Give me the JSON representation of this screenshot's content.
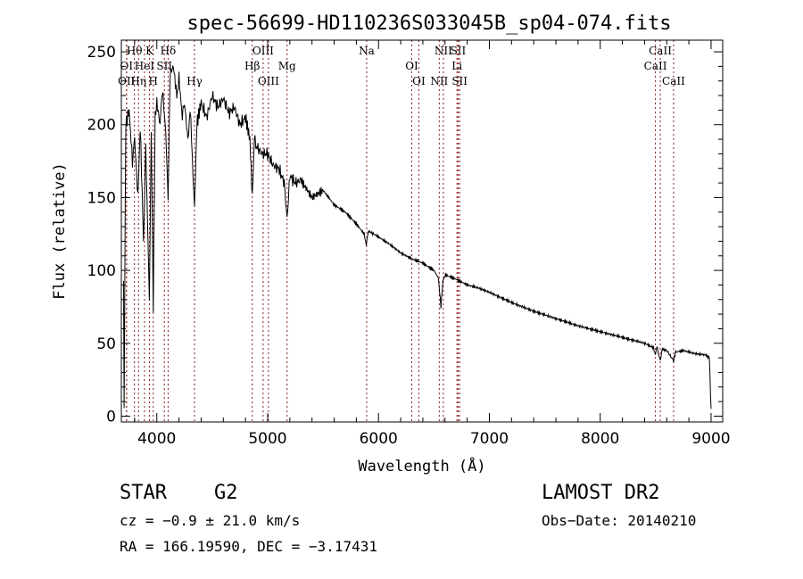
{
  "chart_data": {
    "type": "line",
    "title": "spec-56699-HD110236S033045B_sp04-074.fits",
    "xlabel": "Wavelength (Å)",
    "ylabel": "Flux (relative)",
    "xlim": [
      3680,
      9105
    ],
    "ylim": [
      -4,
      258
    ],
    "xticks": [
      4000,
      5000,
      6000,
      7000,
      8000,
      9000
    ],
    "yticks": [
      0,
      50,
      100,
      150,
      200,
      250
    ],
    "grid": false,
    "series": [
      {
        "name": "flux",
        "x": [
          3700,
          3705,
          3720,
          3750,
          3780,
          3800,
          3830,
          3850,
          3880,
          3900,
          3933,
          3950,
          3968,
          3985,
          4000,
          4030,
          4050,
          4080,
          4102,
          4120,
          4150,
          4180,
          4200,
          4230,
          4250,
          4280,
          4300,
          4320,
          4340,
          4360,
          4400,
          4450,
          4500,
          4550,
          4600,
          4650,
          4700,
          4750,
          4800,
          4840,
          4861,
          4880,
          4900,
          4950,
          5000,
          5050,
          5100,
          5150,
          5175,
          5200,
          5250,
          5300,
          5400,
          5500,
          5600,
          5700,
          5800,
          5870,
          5890,
          5910,
          6000,
          6100,
          6200,
          6300,
          6400,
          6500,
          6540,
          6563,
          6580,
          6600,
          6700,
          6800,
          6900,
          7000,
          7200,
          7400,
          7600,
          7800,
          8000,
          8200,
          8400,
          8480,
          8498,
          8510,
          8542,
          8560,
          8600,
          8662,
          8680,
          8750,
          8850,
          8950,
          8985,
          9000
        ],
        "y": [
          90,
          5,
          200,
          210,
          175,
          190,
          150,
          200,
          120,
          185,
          80,
          195,
          75,
          205,
          215,
          200,
          225,
          195,
          150,
          235,
          240,
          220,
          232,
          205,
          215,
          190,
          210,
          180,
          140,
          200,
          215,
          205,
          220,
          212,
          218,
          208,
          212,
          200,
          205,
          190,
          150,
          190,
          185,
          180,
          180,
          172,
          170,
          160,
          135,
          165,
          160,
          162,
          150,
          155,
          145,
          140,
          132,
          125,
          118,
          127,
          123,
          118,
          112,
          108,
          105,
          100,
          95,
          75,
          92,
          97,
          94,
          90,
          88,
          85,
          78,
          72,
          67,
          62,
          58,
          54,
          50,
          47,
          42,
          48,
          38,
          46,
          45,
          38,
          44,
          45,
          43,
          42,
          40,
          5
        ]
      }
    ],
    "line_marks": [
      {
        "label": "Hθ",
        "w": 3798,
        "row": 1
      },
      {
        "label": "K",
        "w": 3934,
        "row": 1
      },
      {
        "label": "Hδ",
        "w": 4102,
        "row": 1
      },
      {
        "label": "OIII",
        "w": 4959,
        "row": 1
      },
      {
        "label": "Na",
        "w": 5893,
        "row": 1
      },
      {
        "label": "NII",
        "w": 6585,
        "row": 1
      },
      {
        "label": "SII",
        "w": 6718,
        "row": 1
      },
      {
        "label": "CaII",
        "w": 8542,
        "row": 1
      },
      {
        "label": "OI",
        "w": 3727,
        "row": 2
      },
      {
        "label": "HeI",
        "w": 3889,
        "row": 2
      },
      {
        "label": "SII",
        "w": 4068,
        "row": 2
      },
      {
        "label": "Hβ",
        "w": 4861,
        "row": 2
      },
      {
        "label": "Mg",
        "w": 5175,
        "row": 2
      },
      {
        "label": "OI",
        "w": 6300,
        "row": 2
      },
      {
        "label": "Li",
        "w": 6708,
        "row": 2
      },
      {
        "label": "CaII",
        "w": 8498,
        "row": 2
      },
      {
        "label": "OII",
        "w": 3727,
        "row": 3
      },
      {
        "label": "Hη",
        "w": 3835,
        "row": 3
      },
      {
        "label": "H",
        "w": 3968,
        "row": 3
      },
      {
        "label": "Hγ",
        "w": 4340,
        "row": 3
      },
      {
        "label": "OIII",
        "w": 5007,
        "row": 3
      },
      {
        "label": "OI",
        "w": 6364,
        "row": 3
      },
      {
        "label": "NII",
        "w": 6548,
        "row": 3
      },
      {
        "label": "SII",
        "w": 6732,
        "row": 3
      },
      {
        "label": "CaII",
        "w": 8662,
        "row": 3
      }
    ],
    "line_color": "#8b1a1a"
  },
  "info": {
    "class": "STAR",
    "subclass": "G2",
    "survey": "LAMOST DR2",
    "cz": "cz = −0.9 ± 21.0 km/s",
    "obs_date": "Obs−Date: 20140210",
    "coords": "RA = 166.19590, DEC =  −3.17431"
  }
}
